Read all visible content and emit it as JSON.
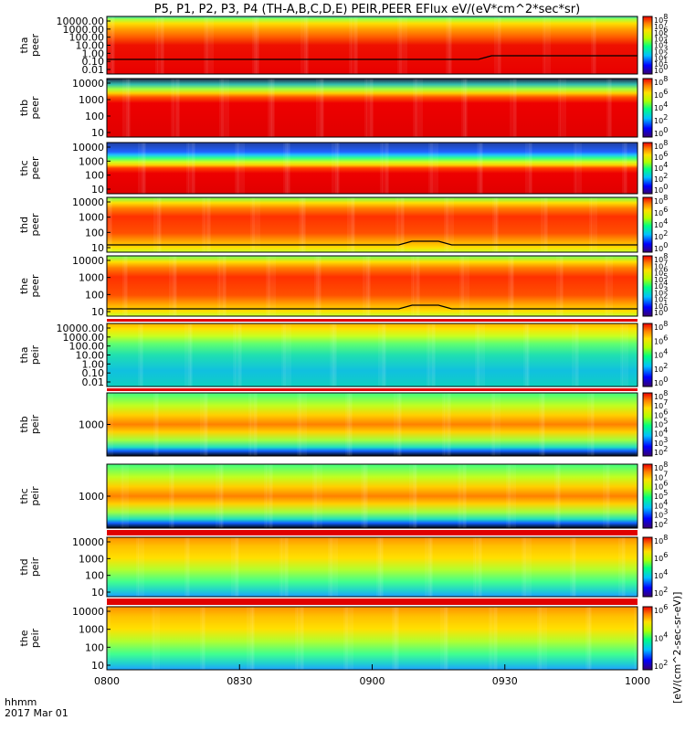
{
  "chart_data": {
    "type": "heatmap",
    "title": "P5, P1, P2, P3, P4 (TH-A,B,C,D,E) PEIR,PEER EFlux eV/(eV*cm^2*sec*sr)",
    "x_label_left": "hhmm",
    "date_label": "2017 Mar 01",
    "x_ticks": [
      "0800",
      "0830",
      "0900",
      "0930",
      "1000"
    ],
    "colorbar_label": "[eV/(cm^2-sec-sr-eV)]",
    "panels": [
      {
        "probe": "tha",
        "species": "peer",
        "y_ticks": [
          "10000.00",
          "1000.00",
          "100.00",
          "10.00",
          "1.00",
          "0.10",
          "0.01"
        ],
        "colorbar_ticks": [
          "10^8",
          "10^7",
          "10^6",
          "10^5",
          "10^4",
          "10^3",
          "10^2",
          "10^1",
          "10^0"
        ],
        "line": true
      },
      {
        "probe": "thb",
        "species": "peer",
        "y_ticks": [
          "10000",
          "1000",
          "100",
          "10"
        ],
        "colorbar_ticks": [
          "10^8",
          "10^6",
          "10^4",
          "10^2",
          "10^0"
        ],
        "line": false
      },
      {
        "probe": "thc",
        "species": "peer",
        "y_ticks": [
          "10000",
          "1000",
          "100",
          "10"
        ],
        "colorbar_ticks": [
          "10^8",
          "10^6",
          "10^4",
          "10^2",
          "10^0"
        ],
        "line": false
      },
      {
        "probe": "thd",
        "species": "peer",
        "y_ticks": [
          "10000",
          "1000",
          "100",
          "10"
        ],
        "colorbar_ticks": [
          "10^8",
          "10^6",
          "10^4",
          "10^2",
          "10^0"
        ],
        "line": true
      },
      {
        "probe": "the",
        "species": "peer",
        "y_ticks": [
          "10000",
          "1000",
          "100",
          "10"
        ],
        "colorbar_ticks": [
          "10^8",
          "10^7",
          "10^6",
          "10^5",
          "10^4",
          "10^3",
          "10^2",
          "10^1",
          "10^0"
        ],
        "line": true
      },
      {
        "probe": "tha",
        "species": "peir",
        "y_ticks": [
          "10000.00",
          "1000.00",
          "100.00",
          "10.00",
          "1.00",
          "0.10",
          "0.01"
        ],
        "colorbar_ticks": [
          "10^8",
          "10^6",
          "10^4",
          "10^2",
          "10^0"
        ],
        "line": false
      },
      {
        "probe": "thb",
        "species": "peir",
        "y_ticks": [
          "1000"
        ],
        "colorbar_ticks": [
          "10^8",
          "10^7",
          "10^6",
          "10^5",
          "10^4",
          "10^3",
          "10^2"
        ],
        "line": false
      },
      {
        "probe": "thc",
        "species": "peir",
        "y_ticks": [
          "1000"
        ],
        "colorbar_ticks": [
          "10^8",
          "10^7",
          "10^6",
          "10^5",
          "10^4",
          "10^3",
          "10^2"
        ],
        "line": false
      },
      {
        "probe": "thd",
        "species": "peir",
        "y_ticks": [
          "10000",
          "1000",
          "100",
          "10"
        ],
        "colorbar_ticks": [
          "10^8",
          "10^6",
          "10^4",
          "10^2"
        ],
        "line": false
      },
      {
        "probe": "the",
        "species": "peir",
        "y_ticks": [
          "10000",
          "1000",
          "100",
          "10"
        ],
        "colorbar_ticks": [
          "10^6",
          "10^4",
          "10^2"
        ],
        "line": false
      }
    ]
  }
}
